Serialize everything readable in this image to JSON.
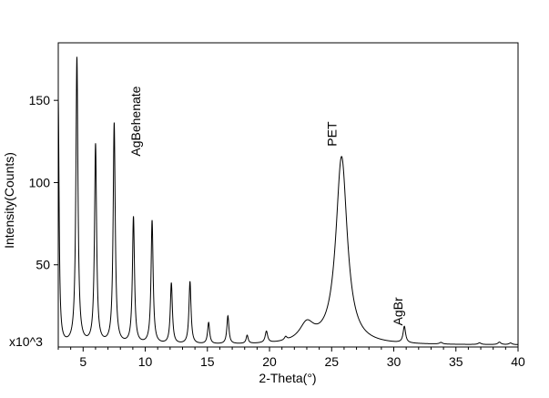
{
  "chart_data": {
    "type": "line",
    "title": "",
    "xlabel": "2-Theta(°)",
    "ylabel": "Intensity(Counts)",
    "y_multiplier_label": "x10^3",
    "xlim": [
      3,
      40
    ],
    "ylim": [
      0,
      185
    ],
    "x_ticks": [
      5,
      10,
      15,
      20,
      25,
      30,
      35,
      40
    ],
    "y_ticks": [
      50,
      100,
      150
    ],
    "grid": false,
    "line_color": "#000000",
    "baseline": 1.2,
    "peaks": [
      {
        "x": 3.0,
        "y": 148,
        "w": 0.08
      },
      {
        "x": 4.5,
        "y": 174,
        "w": 0.1
      },
      {
        "x": 6.0,
        "y": 121,
        "w": 0.1
      },
      {
        "x": 7.5,
        "y": 134,
        "w": 0.1
      },
      {
        "x": 9.05,
        "y": 77,
        "w": 0.1
      },
      {
        "x": 10.55,
        "y": 75,
        "w": 0.1
      },
      {
        "x": 12.1,
        "y": 37,
        "w": 0.1
      },
      {
        "x": 13.6,
        "y": 38,
        "w": 0.1
      },
      {
        "x": 15.1,
        "y": 13,
        "w": 0.1
      },
      {
        "x": 16.65,
        "y": 17,
        "w": 0.1
      },
      {
        "x": 18.2,
        "y": 5,
        "w": 0.1
      },
      {
        "x": 19.75,
        "y": 7,
        "w": 0.12
      },
      {
        "x": 21.3,
        "y": 2,
        "w": 0.12
      },
      {
        "x": 23.0,
        "y": 11,
        "w": 0.7
      },
      {
        "x": 25.8,
        "y": 114,
        "w": 0.55
      },
      {
        "x": 30.85,
        "y": 10,
        "w": 0.12
      },
      {
        "x": 33.8,
        "y": 1,
        "w": 0.15
      },
      {
        "x": 36.9,
        "y": 1,
        "w": 0.15
      },
      {
        "x": 38.5,
        "y": 1.5,
        "w": 0.15
      },
      {
        "x": 39.4,
        "y": 1,
        "w": 0.15
      }
    ],
    "annotations": [
      {
        "text": "AgBehenate",
        "x": 9.6,
        "y": 116
      },
      {
        "text": "PET",
        "x": 25.4,
        "y": 122
      },
      {
        "text": "AgBr",
        "x": 30.7,
        "y": 13
      }
    ]
  }
}
